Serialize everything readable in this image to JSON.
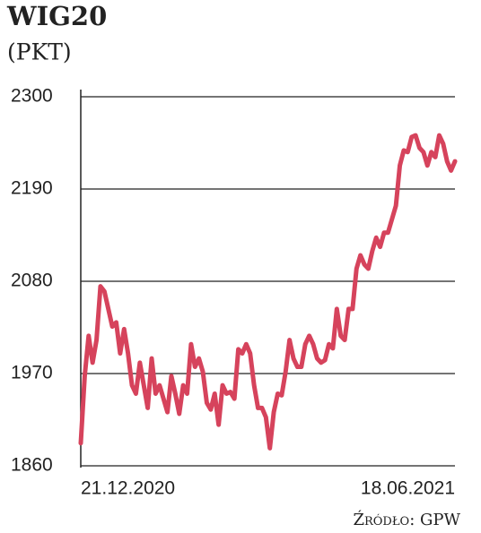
{
  "chart_data": {
    "type": "line",
    "title": "WIG20",
    "subtitle": "(PKT)",
    "source": "Źródło: GPW",
    "categories": [
      "21.12.2020",
      null,
      null,
      null,
      null,
      null,
      null,
      null,
      null,
      null,
      null,
      null,
      null,
      null,
      null,
      null,
      null,
      null,
      null,
      null,
      null,
      null,
      null,
      null,
      null,
      null,
      null,
      null,
      null,
      null,
      null,
      null,
      null,
      null,
      null,
      null,
      null,
      null,
      null,
      null,
      null,
      null,
      null,
      null,
      null,
      null,
      null,
      null,
      null,
      null,
      null,
      null,
      null,
      null,
      null,
      null,
      null,
      null,
      null,
      null,
      null,
      null,
      null,
      null,
      null,
      null,
      null,
      null,
      null,
      null,
      null,
      null,
      null,
      null,
      null,
      null,
      null,
      null,
      null,
      null,
      null,
      null,
      null,
      null,
      null,
      null,
      null,
      null,
      null,
      null,
      null,
      null,
      null,
      null,
      null,
      "18.06.2021"
    ],
    "series": [
      {
        "name": "WIG20",
        "color": "#d6435c",
        "values": [
          1887,
          1967,
          2015,
          1983,
          2010,
          2074,
          2068,
          2047,
          2026,
          2031,
          1994,
          2023,
          1994,
          1956,
          1946,
          1983,
          1956,
          1929,
          1988,
          1946,
          1956,
          1940,
          1924,
          1967,
          1946,
          1922,
          1956,
          1946,
          2005,
          1978,
          1988,
          1972,
          1935,
          1927,
          1946,
          1909,
          1956,
          1946,
          1948,
          1940,
          1999,
          1994,
          2005,
          1994,
          1956,
          1929,
          1929,
          1918,
          1881,
          1924,
          1946,
          1944,
          1972,
          2010,
          1988,
          1978,
          1978,
          2005,
          2015,
          2005,
          1988,
          1983,
          1986,
          2005,
          2000,
          2047,
          2015,
          2010,
          2047,
          2047,
          2095,
          2111,
          2100,
          2095,
          2116,
          2132,
          2121,
          2138,
          2138,
          2154,
          2170,
          2218,
          2236,
          2234,
          2252,
          2254,
          2239,
          2234,
          2218,
          2234,
          2228,
          2254,
          2244,
          2223,
          2212,
          2223
        ]
      }
    ],
    "ylim": [
      1860,
      2300
    ],
    "yticks": [
      1860,
      1970,
      2080,
      2190,
      2300
    ],
    "grid": true
  }
}
